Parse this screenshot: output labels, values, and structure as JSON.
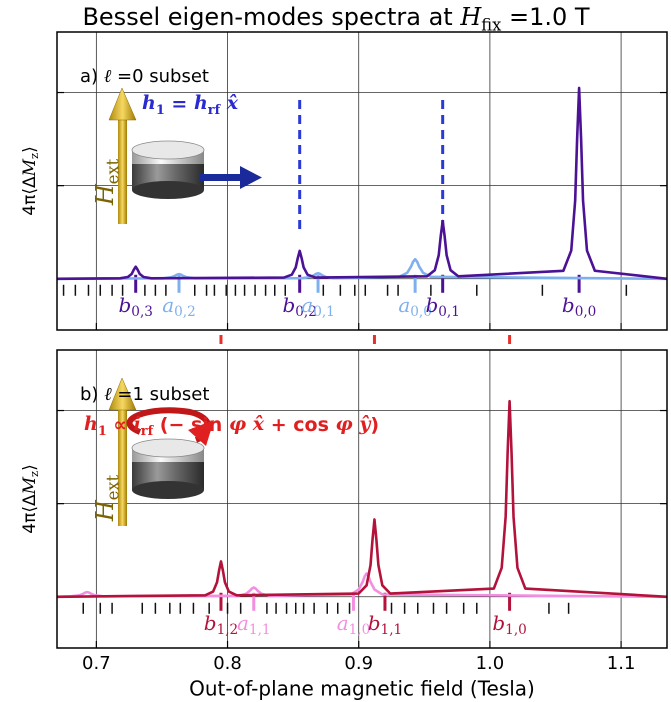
{
  "figure": {
    "title": [
      {
        "t": "Bessel eigen-modes spectra at "
      },
      {
        "t": "H",
        "s": "i"
      },
      {
        "t": "fix",
        "s": "sub"
      },
      {
        "t": " =1.0 T"
      }
    ],
    "cross_lines": [
      {
        "x": 0.795
      },
      {
        "x": 0.912
      },
      {
        "x": 1.015
      }
    ],
    "cross_line_color": "#e8302a"
  },
  "chart_data": [
    {
      "type": "line",
      "panel_label": [
        {
          "t": "a) "
        },
        {
          "t": "ℓ",
          "s": "i"
        },
        {
          "t": " =0"
        },
        {
          "t": " subset"
        }
      ],
      "ylabel": [
        {
          "t": "4π⟨Δ"
        },
        {
          "t": "M",
          "s": "i"
        },
        {
          "t": "z",
          "s": "sub"
        },
        {
          "t": "⟩"
        }
      ],
      "field_label": [
        {
          "t": "H",
          "s": "i"
        },
        {
          "t": "ext",
          "s": "sub"
        }
      ],
      "annotation": [
        {
          "t": "h",
          "s": "bi"
        },
        {
          "t": "1",
          "s": "sub"
        },
        {
          "t": " = "
        },
        {
          "t": "h",
          "s": "i"
        },
        {
          "t": "rf",
          "s": "sub"
        },
        {
          "t": " x̂",
          "s": "bi"
        }
      ],
      "annotation_color": "#2a2ad0",
      "xlim": [
        0.67,
        1.135
      ],
      "ylim": [
        -0.55,
        2.65
      ],
      "xticks": [
        0.7,
        0.8,
        0.9,
        1,
        1.1
      ],
      "yticks": [
        0,
        1,
        2
      ],
      "grid": true,
      "vlines": [
        {
          "x": 0.855
        },
        {
          "x": 0.964
        }
      ],
      "vline_color": "#2a3ad8",
      "series": [
        {
          "color": "#7fb0ee",
          "x": [
            0.67,
            0.751,
            0.757,
            0.76,
            0.7615,
            0.763,
            0.7645,
            0.766,
            0.769,
            0.775,
            0.857,
            0.863,
            0.866,
            0.8675,
            0.869,
            0.8705,
            0.872,
            0.875,
            0.881,
            0.931,
            0.937,
            0.94,
            0.9415,
            0.943,
            0.9445,
            0.946,
            0.949,
            0.955,
            1.135
          ],
          "values": [
            0,
            0.005,
            0.016,
            0.032,
            0.044,
            0.05,
            0.044,
            0.032,
            0.016,
            0.005,
            0.006,
            0.019,
            0.038,
            0.053,
            0.06,
            0.053,
            0.038,
            0.019,
            0.006,
            0.021,
            0.065,
            0.134,
            0.184,
            0.21,
            0.184,
            0.134,
            0.065,
            0.021,
            0
          ]
        },
        {
          "color": "#4b1295",
          "x": [
            0.67,
            0.718,
            0.724,
            0.727,
            0.7285,
            0.73,
            0.7315,
            0.733,
            0.736,
            0.742,
            0.843,
            0.849,
            0.852,
            0.8535,
            0.855,
            0.8565,
            0.858,
            0.861,
            0.867,
            0.952,
            0.958,
            0.961,
            0.9625,
            0.964,
            0.9655,
            0.967,
            0.97,
            0.976,
            1.056,
            1.062,
            1.065,
            1.0665,
            1.068,
            1.0695,
            1.071,
            1.074,
            1.08,
            1.135
          ],
          "values": [
            0,
            0.005,
            0.019,
            0.053,
            0.096,
            0.13,
            0.096,
            0.053,
            0.019,
            0.005,
            0.013,
            0.044,
            0.123,
            0.22,
            0.3,
            0.22,
            0.123,
            0.044,
            0.013,
            0.026,
            0.092,
            0.254,
            0.456,
            0.62,
            0.456,
            0.254,
            0.092,
            0.026,
            0.086,
            0.303,
            0.84,
            1.507,
            2.05,
            1.507,
            0.84,
            0.303,
            0.086,
            0
          ]
        }
      ],
      "mode_ticks": [
        0.675,
        0.684,
        0.694,
        0.703,
        0.712,
        0.72,
        0.737,
        0.745,
        0.753,
        0.775,
        0.784,
        0.79,
        0.799,
        0.806,
        0.813,
        0.821,
        0.829,
        0.836,
        0.844,
        0.873,
        0.886,
        0.897,
        0.905,
        0.922,
        0.93,
        0.955,
        0.99,
        1.04,
        1.104
      ],
      "mode_labels": [
        {
          "x": 0.73,
          "color": "#4b1295",
          "text": [
            {
              "t": "b",
              "s": "i"
            },
            {
              "t": "0,3",
              "s": "sub"
            }
          ]
        },
        {
          "x": 0.763,
          "color": "#7fb0ee",
          "text": [
            {
              "t": "a",
              "s": "i"
            },
            {
              "t": "0,2",
              "s": "sub"
            }
          ]
        },
        {
          "x": 0.855,
          "color": "#4b1295",
          "text": [
            {
              "t": "b",
              "s": "i"
            },
            {
              "t": "0,2",
              "s": "sub"
            }
          ]
        },
        {
          "x": 0.869,
          "color": "#7fb0ee",
          "text": [
            {
              "t": "a",
              "s": "i"
            },
            {
              "t": "0,1",
              "s": "sub"
            }
          ]
        },
        {
          "x": 0.943,
          "color": "#7fb0ee",
          "text": [
            {
              "t": "a",
              "s": "i"
            },
            {
              "t": "0,0",
              "s": "sub"
            }
          ]
        },
        {
          "x": 0.964,
          "color": "#4b1295",
          "text": [
            {
              "t": "b",
              "s": "i"
            },
            {
              "t": "0,1",
              "s": "sub"
            }
          ]
        },
        {
          "x": 1.068,
          "color": "#4b1295",
          "text": [
            {
              "t": "b",
              "s": "i"
            },
            {
              "t": "0,0",
              "s": "sub"
            }
          ]
        }
      ]
    },
    {
      "type": "line",
      "panel_label": [
        {
          "t": "b) "
        },
        {
          "t": "ℓ",
          "s": "i"
        },
        {
          "t": " =1"
        },
        {
          "t": " subset"
        }
      ],
      "ylabel": [
        {
          "t": "4π⟨Δ"
        },
        {
          "t": "M",
          "s": "i"
        },
        {
          "t": "z",
          "s": "sub"
        },
        {
          "t": "⟩"
        }
      ],
      "field_label": [
        {
          "t": "H",
          "s": "i"
        },
        {
          "t": "ext",
          "s": "sub"
        }
      ],
      "annotation": [
        {
          "t": "h",
          "s": "bi"
        },
        {
          "t": "1",
          "s": "sub"
        },
        {
          "t": " ∝ "
        },
        {
          "t": "i",
          "s": "i"
        },
        {
          "t": "rf",
          "s": "sub"
        },
        {
          "t": " (− sin "
        },
        {
          "t": "φ",
          "s": "i"
        },
        {
          "t": " x̂",
          "s": "bi"
        },
        {
          "t": " + cos "
        },
        {
          "t": "φ",
          "s": "i"
        },
        {
          "t": " ŷ",
          "s": "bi"
        },
        {
          "t": ")"
        }
      ],
      "annotation_color": "#e02020",
      "xlabel": "Out-of-plane magnetic field (Tesla)",
      "xlim": [
        0.67,
        1.135
      ],
      "ylim": [
        -0.55,
        2.65
      ],
      "xticks": [
        0.7,
        0.8,
        0.9,
        {
          "value": 1,
          "label": "1.0"
        },
        1.1
      ],
      "yticks": [
        0,
        1,
        2
      ],
      "grid": true,
      "series": [
        {
          "color": "#f28fe0",
          "x": [
            0.67,
            0.681,
            0.687,
            0.69,
            0.6915,
            0.693,
            0.6945,
            0.696,
            0.699,
            0.705,
            0.808,
            0.814,
            0.817,
            0.8185,
            0.82,
            0.8215,
            0.823,
            0.826,
            0.832,
            0.894,
            0.9,
            0.903,
            0.9045,
            0.906,
            0.9075,
            0.909,
            0.912,
            0.918,
            1.135
          ],
          "values": [
            0,
            0.005,
            0.016,
            0.032,
            0.044,
            0.05,
            0.044,
            0.032,
            0.016,
            0.005,
            0.01,
            0.031,
            0.064,
            0.088,
            0.1,
            0.088,
            0.064,
            0.031,
            0.01,
            0.025,
            0.078,
            0.16,
            0.219,
            0.25,
            0.219,
            0.16,
            0.078,
            0.025,
            0
          ]
        },
        {
          "color": "#b3123a",
          "x": [
            0.67,
            0.783,
            0.789,
            0.792,
            0.7935,
            0.795,
            0.7965,
            0.798,
            0.801,
            0.807,
            0.9,
            0.906,
            0.909,
            0.9105,
            0.912,
            0.9135,
            0.915,
            0.918,
            0.924,
            1.003,
            1.009,
            1.012,
            1.0135,
            1.015,
            1.0165,
            1.018,
            1.021,
            1.027,
            1.135
          ],
          "values": [
            0,
            0.016,
            0.056,
            0.156,
            0.279,
            0.38,
            0.279,
            0.156,
            0.056,
            0.016,
            0.035,
            0.123,
            0.34,
            0.61,
            0.83,
            0.61,
            0.34,
            0.123,
            0.035,
            0.088,
            0.311,
            0.861,
            1.544,
            2.1,
            1.544,
            0.861,
            0.311,
            0.088,
            0
          ]
        }
      ],
      "mode_ticks": [
        0.69,
        0.703,
        0.712,
        0.735,
        0.745,
        0.756,
        0.764,
        0.774,
        0.786,
        0.8,
        0.81,
        0.83,
        0.837,
        0.845,
        0.852,
        0.858,
        0.866,
        0.876,
        0.884,
        0.893,
        0.925,
        0.935,
        0.945,
        0.957,
        0.967,
        0.98,
        0.99,
        1.045,
        1.06
      ],
      "mode_labels": [
        {
          "x": 0.795,
          "color": "#b3123a",
          "text": [
            {
              "t": "b",
              "s": "i"
            },
            {
              "t": "1,2",
              "s": "sub"
            }
          ]
        },
        {
          "x": 0.82,
          "color": "#f28fe0",
          "text": [
            {
              "t": "a",
              "s": "i"
            },
            {
              "t": "1,1",
              "s": "sub"
            }
          ]
        },
        {
          "x": 0.896,
          "color": "#f28fe0",
          "text": [
            {
              "t": "a",
              "s": "i"
            },
            {
              "t": "1,0",
              "s": "sub"
            }
          ]
        },
        {
          "x": 0.92,
          "color": "#b3123a",
          "text": [
            {
              "t": "b",
              "s": "i"
            },
            {
              "t": "1,1",
              "s": "sub"
            }
          ]
        },
        {
          "x": 1.015,
          "color": "#b3123a",
          "text": [
            {
              "t": "b",
              "s": "i"
            },
            {
              "t": "1,0",
              "s": "sub"
            }
          ]
        }
      ]
    }
  ]
}
